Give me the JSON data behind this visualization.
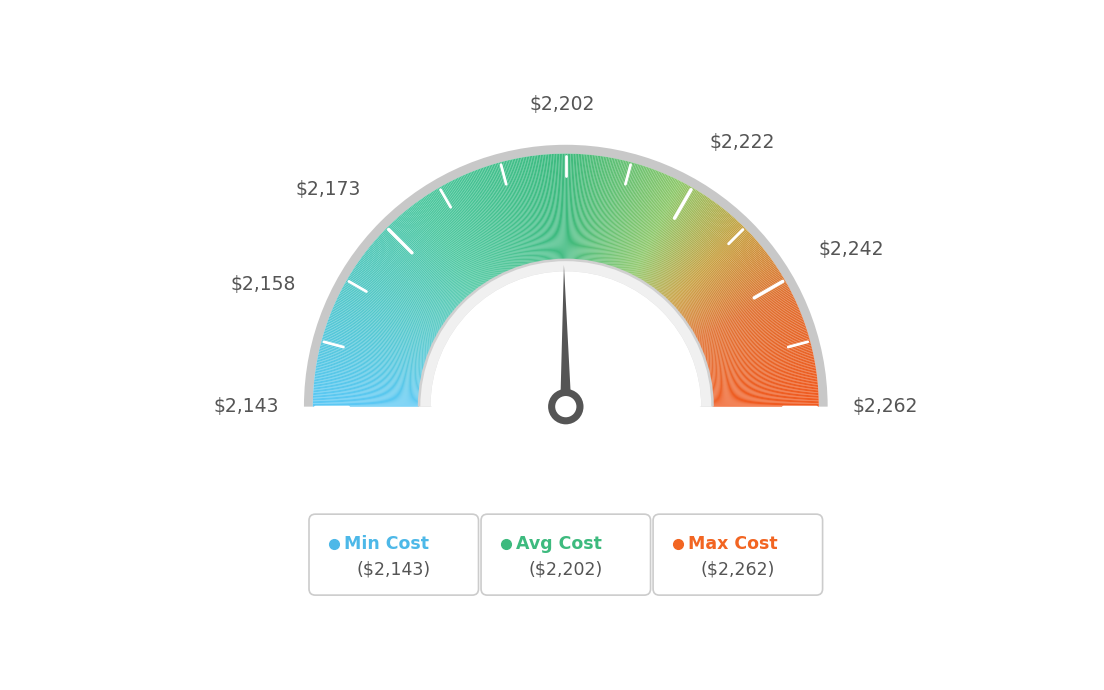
{
  "min_val": 2143,
  "avg_val": 2202,
  "max_val": 2262,
  "legend_labels": [
    "Min Cost",
    "Avg Cost",
    "Max Cost"
  ],
  "legend_values": [
    "($2,143)",
    "($2,202)",
    "($2,262)"
  ],
  "legend_colors": [
    "#4db8e8",
    "#3dba7e",
    "#f26522"
  ],
  "background_color": "#ffffff",
  "needle_value": 2202,
  "color_stops": [
    [
      0.0,
      "#5bc8f5"
    ],
    [
      0.3,
      "#4dc8a0"
    ],
    [
      0.5,
      "#3dba7e"
    ],
    [
      0.65,
      "#8ec86a"
    ],
    [
      0.75,
      "#c8a040"
    ],
    [
      0.85,
      "#e07030"
    ],
    [
      1.0,
      "#f05a20"
    ]
  ],
  "outer_r": 1.0,
  "inner_r": 0.58,
  "label_data": [
    [
      2143,
      "$2,143",
      "right",
      "center"
    ],
    [
      2158,
      "$2,158",
      "right",
      "bottom"
    ],
    [
      2173,
      "$2,173",
      "right",
      "bottom"
    ],
    [
      2202,
      "$2,202",
      "center",
      "bottom"
    ],
    [
      2222,
      "$2,222",
      "left",
      "bottom"
    ],
    [
      2242,
      "$2,242",
      "left",
      "bottom"
    ],
    [
      2262,
      "$2,262",
      "left",
      "center"
    ]
  ]
}
